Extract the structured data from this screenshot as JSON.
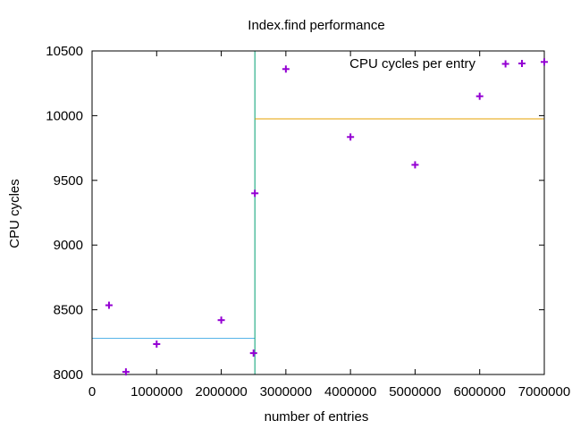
{
  "chart_data": {
    "type": "scatter",
    "title": "Index.find performance",
    "xlabel": "number of entries",
    "ylabel": "CPU cycles",
    "xlim": [
      0,
      7000000
    ],
    "ylim": [
      8000,
      10500
    ],
    "xticks": [
      0,
      1000000,
      2000000,
      3000000,
      4000000,
      5000000,
      6000000,
      7000000
    ],
    "yticks": [
      8000,
      8500,
      9000,
      9500,
      10000,
      10500
    ],
    "grid": false,
    "legend": "top-right",
    "series": [
      {
        "name": "CPU cycles per entry",
        "color": "#9400d3",
        "marker": "plus",
        "x": [
          262144,
          524288,
          1000000,
          2000000,
          2500000,
          2520000,
          3000000,
          4000000,
          5000000,
          6000000,
          6400000,
          7000000
        ],
        "y": [
          8535,
          8020,
          8235,
          8420,
          8165,
          9400,
          10360,
          9835,
          9620,
          10150,
          10400,
          10415
        ]
      }
    ],
    "reference_lines": [
      {
        "color": "#56b4e9",
        "x": [
          0,
          2520000
        ],
        "y": [
          8280,
          8280
        ]
      },
      {
        "color": "#009e73",
        "x": [
          2520000,
          2520000
        ],
        "y": [
          8000,
          10500
        ]
      },
      {
        "color": "#e6a000",
        "x": [
          2520000,
          7000000
        ],
        "y": [
          9975,
          9975
        ]
      }
    ]
  }
}
